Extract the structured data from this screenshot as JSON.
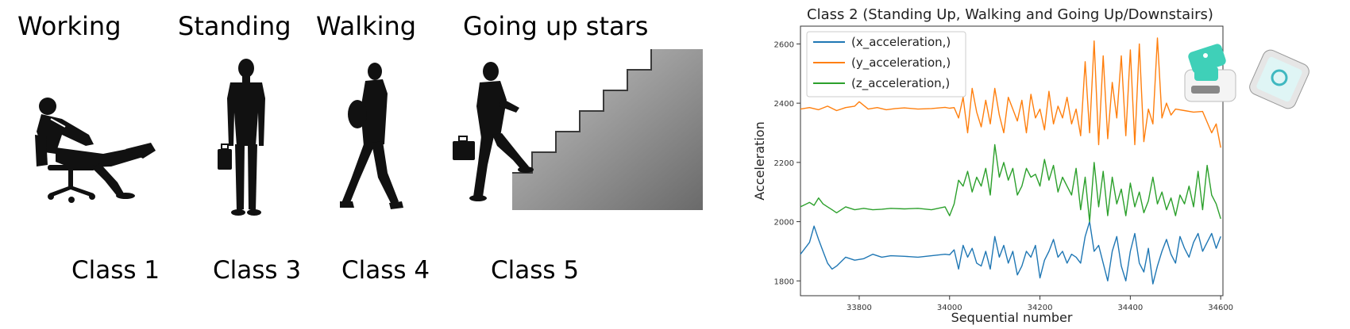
{
  "activities": [
    {
      "label": "Working",
      "class_label": "Class 1",
      "icon": "person-reclining-in-office-chair-icon"
    },
    {
      "label": "Standing",
      "class_label": "Class 3",
      "icon": "person-standing-with-briefcase-icon"
    },
    {
      "label": "Walking",
      "class_label": "Class 4",
      "icon": "person-walking-with-bag-icon"
    },
    {
      "label": "Going up stars",
      "class_label": "Class 5",
      "icon": "person-climbing-stairs-icon"
    }
  ],
  "device_icon": "wearable-sensor-and-phone-icon",
  "chart_data": {
    "type": "line",
    "title": "Class 2 (Standing Up, Walking and Going Up/Downstairs)",
    "xlabel": "Sequential number",
    "ylabel": "Acceleration",
    "xlim": [
      33670,
      34605
    ],
    "ylim": [
      1750,
      2660
    ],
    "xticks": [
      33800,
      34000,
      34200,
      34400,
      34600
    ],
    "yticks": [
      1800,
      2000,
      2200,
      2400,
      2600
    ],
    "grid": false,
    "legend_position": "upper-left",
    "series": [
      {
        "name": "(x_acceleration,)",
        "color": "#1f77b4",
        "x": [
          33670,
          33690,
          33700,
          33710,
          33720,
          33730,
          33740,
          33750,
          33770,
          33790,
          33810,
          33830,
          33850,
          33870,
          33900,
          33930,
          33960,
          33990,
          34000,
          34010,
          34020,
          34030,
          34040,
          34050,
          34060,
          34070,
          34080,
          34090,
          34100,
          34110,
          34120,
          34130,
          34140,
          34150,
          34160,
          34170,
          34180,
          34190,
          34200,
          34210,
          34220,
          34230,
          34240,
          34250,
          34260,
          34270,
          34280,
          34290,
          34300,
          34310,
          34320,
          34330,
          34340,
          34350,
          34360,
          34370,
          34380,
          34390,
          34400,
          34410,
          34420,
          34430,
          34440,
          34450,
          34460,
          34470,
          34480,
          34490,
          34500,
          34510,
          34520,
          34530,
          34540,
          34550,
          34560,
          34570,
          34580,
          34590,
          34600
        ],
        "values": [
          1890,
          1930,
          1985,
          1940,
          1900,
          1860,
          1840,
          1850,
          1880,
          1870,
          1875,
          1890,
          1880,
          1885,
          1883,
          1880,
          1885,
          1890,
          1888,
          1905,
          1840,
          1920,
          1880,
          1910,
          1860,
          1850,
          1900,
          1840,
          1950,
          1880,
          1920,
          1860,
          1900,
          1820,
          1850,
          1900,
          1880,
          1920,
          1810,
          1870,
          1900,
          1940,
          1880,
          1900,
          1860,
          1890,
          1880,
          1860,
          1950,
          2000,
          1900,
          1920,
          1860,
          1800,
          1900,
          1950,
          1850,
          1800,
          1900,
          1960,
          1860,
          1830,
          1910,
          1790,
          1850,
          1900,
          1940,
          1890,
          1860,
          1950,
          1910,
          1880,
          1930,
          1960,
          1900,
          1930,
          1960,
          1910,
          1950
        ]
      },
      {
        "name": "(y_acceleration,)",
        "color": "#ff7f0e",
        "x": [
          33670,
          33690,
          33710,
          33730,
          33750,
          33770,
          33790,
          33800,
          33820,
          33840,
          33860,
          33880,
          33900,
          33930,
          33960,
          33990,
          34000,
          34010,
          34020,
          34030,
          34040,
          34050,
          34060,
          34070,
          34080,
          34090,
          34100,
          34110,
          34120,
          34130,
          34140,
          34150,
          34160,
          34170,
          34180,
          34190,
          34200,
          34210,
          34220,
          34230,
          34240,
          34250,
          34260,
          34270,
          34280,
          34290,
          34300,
          34310,
          34320,
          34330,
          34340,
          34350,
          34360,
          34370,
          34380,
          34390,
          34400,
          34410,
          34420,
          34430,
          34440,
          34450,
          34460,
          34470,
          34480,
          34490,
          34500,
          34520,
          34540,
          34560,
          34580,
          34590,
          34600
        ],
        "values": [
          2380,
          2385,
          2378,
          2390,
          2375,
          2385,
          2390,
          2405,
          2380,
          2385,
          2378,
          2382,
          2384,
          2380,
          2382,
          2386,
          2383,
          2385,
          2350,
          2420,
          2300,
          2450,
          2370,
          2320,
          2410,
          2330,
          2450,
          2360,
          2300,
          2420,
          2380,
          2340,
          2410,
          2300,
          2430,
          2350,
          2380,
          2310,
          2440,
          2330,
          2390,
          2350,
          2420,
          2330,
          2380,
          2290,
          2540,
          2300,
          2610,
          2260,
          2560,
          2280,
          2470,
          2350,
          2560,
          2290,
          2580,
          2260,
          2600,
          2270,
          2380,
          2330,
          2620,
          2350,
          2400,
          2360,
          2380,
          2375,
          2370,
          2372,
          2300,
          2330,
          2250
        ]
      },
      {
        "name": "(z_acceleration,)",
        "color": "#2ca02c",
        "x": [
          33670,
          33690,
          33700,
          33710,
          33720,
          33730,
          33740,
          33750,
          33770,
          33790,
          33810,
          33830,
          33850,
          33870,
          33900,
          33930,
          33960,
          33990,
          34000,
          34010,
          34020,
          34030,
          34040,
          34050,
          34060,
          34070,
          34080,
          34090,
          34100,
          34110,
          34120,
          34130,
          34140,
          34150,
          34160,
          34170,
          34180,
          34190,
          34200,
          34210,
          34220,
          34230,
          34240,
          34250,
          34260,
          34270,
          34280,
          34290,
          34300,
          34310,
          34320,
          34330,
          34340,
          34350,
          34360,
          34370,
          34380,
          34390,
          34400,
          34410,
          34420,
          34430,
          34440,
          34450,
          34460,
          34470,
          34480,
          34490,
          34500,
          34510,
          34520,
          34530,
          34540,
          34550,
          34560,
          34570,
          34580,
          34590,
          34600
        ],
        "values": [
          2050,
          2065,
          2055,
          2080,
          2060,
          2050,
          2040,
          2030,
          2050,
          2040,
          2045,
          2040,
          2042,
          2045,
          2043,
          2045,
          2040,
          2050,
          2020,
          2060,
          2140,
          2120,
          2170,
          2100,
          2150,
          2120,
          2180,
          2090,
          2260,
          2150,
          2200,
          2140,
          2180,
          2090,
          2120,
          2180,
          2150,
          2160,
          2120,
          2210,
          2140,
          2190,
          2100,
          2150,
          2120,
          2090,
          2180,
          2040,
          2150,
          2000,
          2200,
          2050,
          2170,
          2020,
          2150,
          2060,
          2110,
          2020,
          2130,
          2050,
          2100,
          2030,
          2070,
          2150,
          2060,
          2100,
          2040,
          2080,
          2020,
          2090,
          2060,
          2120,
          2050,
          2170,
          2040,
          2190,
          2090,
          2060,
          2010
        ]
      }
    ]
  }
}
